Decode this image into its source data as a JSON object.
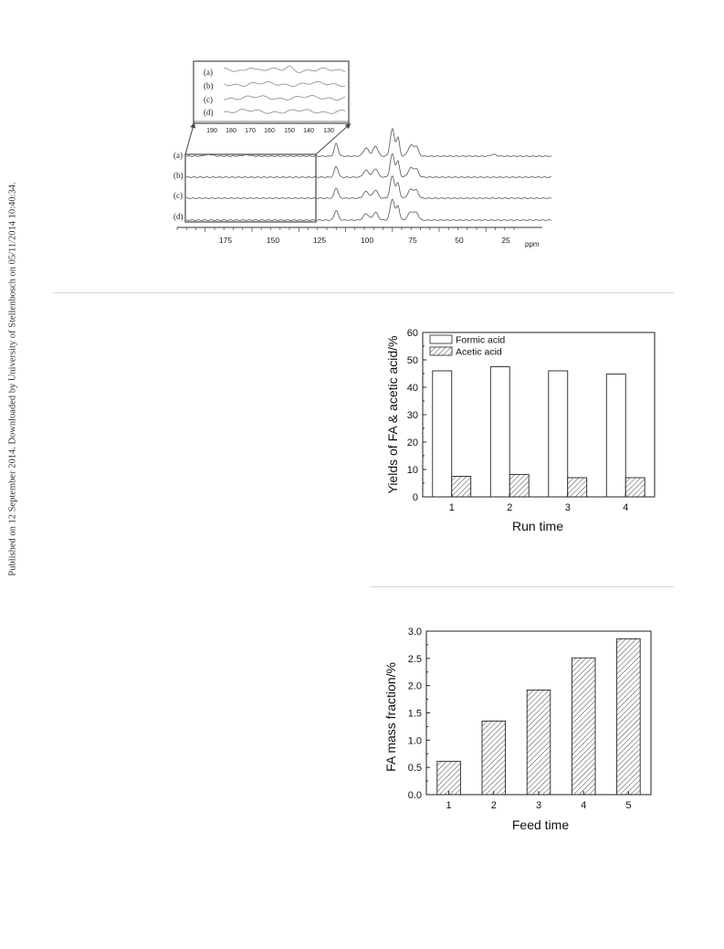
{
  "side_note": "Published on 12 September 2014. Downloaded by University of Stellenbosch on 05/11/2014 10:40:34.",
  "colors": {
    "axis": "#222222",
    "trace": "#555555",
    "rule": "#d8d6c8"
  },
  "nmr": {
    "trace_labels": [
      "(a)",
      "(b)",
      "(c)",
      "(d)"
    ],
    "axis_ticks": [
      "175",
      "150",
      "125",
      "100",
      "75",
      "50",
      "25"
    ],
    "axis_unit": "ppm",
    "inset_trace_labels": [
      "(a)",
      "(b)",
      "(c)",
      "(d)"
    ],
    "inset_ticks": [
      "190",
      "180",
      "170",
      "160",
      "150",
      "140",
      "130"
    ]
  },
  "chart_data": [
    {
      "type": "bar",
      "categories": [
        "1",
        "2",
        "3",
        "4"
      ],
      "series": [
        {
          "name": "Formic acid",
          "values": [
            46,
            47.5,
            46,
            44.8
          ],
          "fill": "open"
        },
        {
          "name": "Acetic acid",
          "values": [
            7.5,
            8.2,
            7.0,
            7.0
          ],
          "fill": "hatched"
        }
      ],
      "xlabel": "Run time",
      "ylabel": "Yields of FA & acetic acid/%",
      "ylim": [
        0,
        60
      ],
      "yticks": [
        "0",
        "10",
        "20",
        "30",
        "40",
        "50",
        "60"
      ],
      "legend": "top-left",
      "grid": false
    },
    {
      "type": "bar",
      "categories": [
        "1",
        "2",
        "3",
        "4",
        "5"
      ],
      "values": [
        0.61,
        1.35,
        1.92,
        2.51,
        2.86
      ],
      "xlabel": "Feed time",
      "ylabel": "FA mass fraction/%",
      "ylim": [
        0,
        3.0
      ],
      "yticks": [
        "0.0",
        "0.5",
        "1.0",
        "1.5",
        "2.0",
        "2.5",
        "3.0"
      ],
      "grid": false
    }
  ]
}
